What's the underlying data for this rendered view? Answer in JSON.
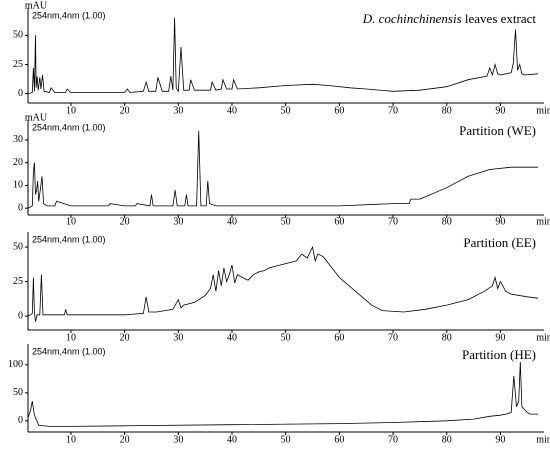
{
  "chart_data": [
    {
      "type": "line",
      "y_label": "mAU",
      "label": "254nm,4nm (1.00)",
      "title_italic": "D. cochinchinensis",
      "title": "leaves extract",
      "x_label": "min",
      "color": "#000000",
      "xlim": [
        2,
        97
      ],
      "xticks": [
        10,
        20,
        30,
        40,
        50,
        60,
        70,
        80,
        90
      ],
      "ylim": [
        -8,
        70
      ],
      "yticks": [
        0,
        25,
        50
      ],
      "x": [
        2,
        2.8,
        3.0,
        3.2,
        3.4,
        3.5,
        3.7,
        3.9,
        4.2,
        4.4,
        4.7,
        5.0,
        6,
        6.3,
        7,
        9,
        9.3,
        10,
        15,
        20,
        20.5,
        21,
        23.5,
        24,
        24.5,
        25.8,
        26.2,
        27,
        28.2,
        28.6,
        29.0,
        29.3,
        29.6,
        30.0,
        30.5,
        31,
        32,
        32.3,
        33,
        36,
        36.3,
        37,
        38,
        38.3,
        39,
        40,
        40.3,
        41,
        45,
        50,
        55,
        58,
        62,
        65,
        70,
        75,
        80,
        84,
        87.5,
        88,
        88.5,
        89,
        89.5,
        90,
        91,
        92,
        92.4,
        92.8,
        93.2,
        93.6,
        94,
        94.5,
        97
      ],
      "values": [
        0,
        1,
        22,
        2,
        50,
        5,
        15,
        3,
        14,
        4,
        16,
        2,
        1,
        5,
        1,
        1,
        4,
        1,
        1,
        1,
        4,
        1,
        2,
        10,
        2,
        2,
        14,
        2,
        2,
        15,
        3,
        65,
        5,
        2,
        40,
        3,
        3,
        12,
        3,
        3,
        10,
        3,
        4,
        12,
        4,
        4,
        12,
        4,
        5,
        7,
        8,
        7,
        5,
        4,
        2,
        3,
        6,
        12,
        15,
        22,
        16,
        25,
        17,
        16,
        17,
        18,
        26,
        55,
        20,
        25,
        17,
        16,
        17
      ]
    },
    {
      "type": "line",
      "y_label": "mAU",
      "label": "254nm,4nm (1.00)",
      "title": "Partition (WE)",
      "x_label": "min",
      "color": "#000000",
      "xlim": [
        2,
        97
      ],
      "xticks": [
        10,
        20,
        30,
        40,
        50,
        60,
        70,
        80,
        90
      ],
      "ylim": [
        -3,
        37
      ],
      "yticks": [
        0,
        10,
        20,
        30
      ],
      "x": [
        2,
        2.8,
        3.0,
        3.2,
        3.4,
        3.6,
        3.8,
        4.0,
        4.3,
        4.6,
        4.9,
        5.5,
        7,
        7.3,
        10,
        17,
        17.3,
        20,
        22,
        22.3,
        24.7,
        25,
        25.3,
        29,
        29.4,
        29.8,
        31.2,
        31.5,
        31.8,
        33.4,
        33.8,
        34.2,
        35.2,
        35.5,
        35.8,
        37,
        40,
        50,
        60,
        70,
        73,
        73.3,
        75,
        80,
        84,
        88,
        92,
        97
      ],
      "values": [
        0,
        1,
        16,
        20,
        6,
        8,
        12,
        3,
        8,
        14,
        2,
        1,
        1,
        3,
        1,
        1,
        2,
        1,
        1,
        2,
        1,
        6,
        1,
        1,
        8,
        1,
        1,
        6,
        1,
        1,
        34,
        1,
        1,
        12,
        2,
        1,
        1,
        1,
        1,
        2,
        2,
        4,
        4,
        9,
        14,
        17,
        18,
        18
      ]
    },
    {
      "type": "line",
      "label": "254nm,4nm (1.00)",
      "title": "Partition (EE)",
      "x_label": "min",
      "color": "#000000",
      "xlim": [
        2,
        97
      ],
      "xticks": [
        10,
        20,
        30,
        40,
        50,
        60,
        70,
        80,
        90
      ],
      "ylim": [
        -10,
        58
      ],
      "yticks": [
        0,
        25,
        50
      ],
      "x": [
        2,
        2.8,
        3.0,
        3.2,
        3.4,
        3.7,
        4.2,
        4.5,
        4.8,
        6,
        8.8,
        9,
        9.3,
        20,
        23.5,
        24,
        24.5,
        26,
        29,
        30,
        30.5,
        31,
        33,
        35,
        36,
        36.5,
        37,
        37.5,
        38,
        38.5,
        39,
        39.5,
        40,
        40.5,
        41,
        42,
        43,
        44,
        45,
        46,
        47,
        48,
        50,
        52,
        53,
        54,
        55,
        55.5,
        56,
        57,
        58,
        60,
        63,
        66,
        68,
        72,
        76,
        80,
        84,
        87,
        88.5,
        89,
        89.5,
        90,
        91,
        92,
        95,
        97
      ],
      "values": [
        0,
        2,
        28,
        3,
        -4,
        1,
        1,
        30,
        1,
        1,
        1,
        5,
        1,
        1,
        2,
        14,
        3,
        3,
        5,
        12,
        6,
        8,
        10,
        15,
        20,
        30,
        18,
        33,
        22,
        35,
        25,
        30,
        37,
        24,
        30,
        28,
        26,
        30,
        32,
        33,
        35,
        36,
        38,
        40,
        45,
        42,
        50,
        40,
        45,
        43,
        38,
        28,
        18,
        8,
        4,
        3,
        5,
        8,
        12,
        18,
        22,
        28,
        20,
        25,
        18,
        16,
        14,
        13
      ]
    },
    {
      "type": "line",
      "label": "254nm,4nm (1.00)",
      "title": "Partition (HE)",
      "x_label": "min",
      "color": "#000000",
      "xlim": [
        2,
        97
      ],
      "xticks": [
        10,
        20,
        30,
        40,
        50,
        60,
        70,
        80,
        90
      ],
      "ylim": [
        -20,
        130
      ],
      "yticks": [
        0,
        50,
        100
      ],
      "x": [
        2,
        2.5,
        2.8,
        3.2,
        4,
        6,
        10,
        20,
        40,
        60,
        70,
        80,
        85,
        88,
        90,
        91,
        92,
        92.5,
        93,
        93.4,
        93.7,
        94,
        94.5,
        95,
        95.5,
        97
      ],
      "values": [
        5,
        20,
        35,
        10,
        -8,
        -10,
        -10,
        -9,
        -7,
        -5,
        -3,
        0,
        3,
        8,
        10,
        12,
        15,
        80,
        25,
        35,
        105,
        25,
        20,
        15,
        12,
        12
      ]
    }
  ]
}
